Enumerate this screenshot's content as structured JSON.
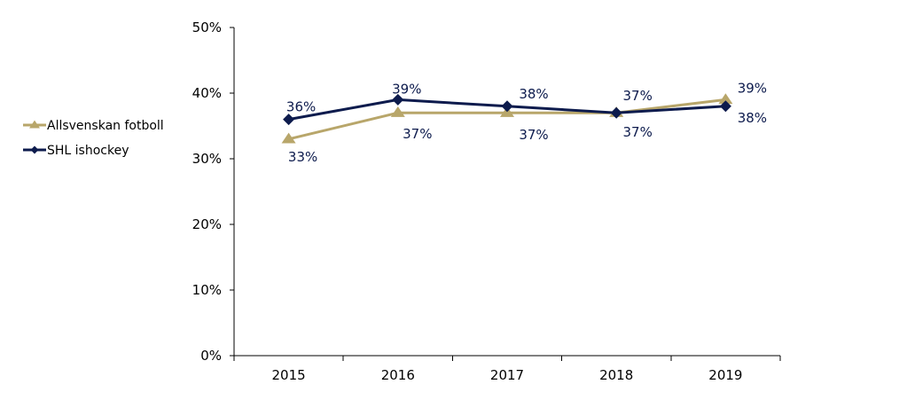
{
  "chart_data": {
    "type": "line",
    "categories": [
      "2015",
      "2016",
      "2017",
      "2018",
      "2019"
    ],
    "ylim": [
      0,
      50
    ],
    "yticks": [
      "0%",
      "10%",
      "20%",
      "30%",
      "40%",
      "50%"
    ],
    "grid": false,
    "legend_position": "left",
    "series": [
      {
        "name": "Allsvenskan fotboll",
        "values": [
          33,
          37,
          37,
          37,
          39
        ],
        "labels": [
          "33%",
          "37%",
          "37%",
          "37%",
          "39%"
        ],
        "color": "#b8a66a",
        "marker": "triangle"
      },
      {
        "name": "SHL ishockey",
        "values": [
          36,
          39,
          38,
          37,
          38
        ],
        "labels": [
          "36%",
          "39%",
          "38%",
          "37%",
          "38%"
        ],
        "color": "#0d1b4d",
        "marker": "diamond"
      }
    ]
  }
}
